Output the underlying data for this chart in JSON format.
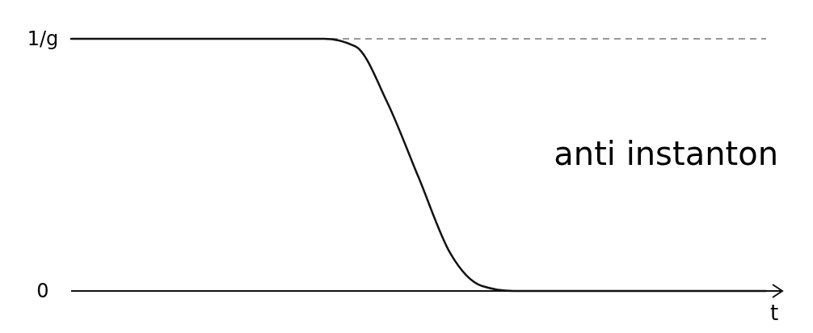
{
  "chart_data": {
    "type": "line",
    "xlabel": "t",
    "categories": [
      null,
      null,
      null,
      null,
      null,
      null,
      null,
      null,
      null,
      null,
      null,
      null,
      null,
      null,
      null,
      null,
      null,
      null,
      null,
      null,
      null,
      null,
      null
    ],
    "series": [
      {
        "color": "#111111",
        "values": [
          1,
          1,
          1,
          1,
          1,
          1,
          1,
          1,
          1,
          0.97,
          0.75,
          0.45,
          0.15,
          0.02,
          0,
          0,
          0,
          0,
          0,
          0,
          0,
          0,
          0
        ]
      }
    ],
    "ylim": [
      0,
      1
    ],
    "yticks": [
      {
        "value": 0,
        "label": "0"
      },
      {
        "value": 1,
        "label": "1/g"
      }
    ],
    "tick_labels": "y",
    "marker": "none",
    "line_style": "solid",
    "ref_lines": [
      {
        "axis": "y",
        "value": 1,
        "color": "#777777",
        "line_style": "dashed"
      }
    ],
    "annotations": [
      "anti instanton"
    ]
  }
}
